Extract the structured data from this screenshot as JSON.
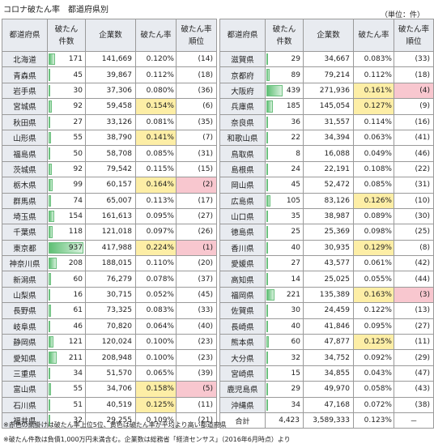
{
  "title": "コロナ破たん率　都道府県別",
  "unit": "（単位：件）",
  "headers": {
    "pref": "都道府県",
    "count_l1": "破たん",
    "count_l2": "件数",
    "companies": "企業数",
    "rate": "破たん率",
    "rank_l1": "破たん率",
    "rank_l2": "順位"
  },
  "max_count": 937,
  "left_rows": [
    {
      "pref": "北海道",
      "count": 171,
      "companies": "141,669",
      "rate": "0.120%",
      "rank": "(14)",
      "hl": ""
    },
    {
      "pref": "青森県",
      "count": 45,
      "companies": "39,867",
      "rate": "0.112%",
      "rank": "(18)",
      "hl": ""
    },
    {
      "pref": "岩手県",
      "count": 30,
      "companies": "37,306",
      "rate": "0.080%",
      "rank": "(36)",
      "hl": ""
    },
    {
      "pref": "宮城県",
      "count": 92,
      "companies": "59,458",
      "rate": "0.154%",
      "rank": "(6)",
      "hl": "y"
    },
    {
      "pref": "秋田県",
      "count": 27,
      "companies": "33,126",
      "rate": "0.081%",
      "rank": "(35)",
      "hl": ""
    },
    {
      "pref": "山形県",
      "count": 55,
      "companies": "38,790",
      "rate": "0.141%",
      "rank": "(7)",
      "hl": "y"
    },
    {
      "pref": "福島県",
      "count": 50,
      "companies": "58,708",
      "rate": "0.085%",
      "rank": "(31)",
      "hl": ""
    },
    {
      "pref": "茨城県",
      "count": 92,
      "companies": "79,542",
      "rate": "0.115%",
      "rank": "(15)",
      "hl": ""
    },
    {
      "pref": "栃木県",
      "count": 99,
      "companies": "60,157",
      "rate": "0.164%",
      "rank": "(2)",
      "hl": "p"
    },
    {
      "pref": "群馬県",
      "count": 74,
      "companies": "65,007",
      "rate": "0.113%",
      "rank": "(17)",
      "hl": ""
    },
    {
      "pref": "埼玉県",
      "count": 154,
      "companies": "161,613",
      "rate": "0.095%",
      "rank": "(27)",
      "hl": ""
    },
    {
      "pref": "千葉県",
      "count": 118,
      "companies": "121,018",
      "rate": "0.097%",
      "rank": "(26)",
      "hl": ""
    },
    {
      "pref": "東京都",
      "count": 937,
      "companies": "417,988",
      "rate": "0.224%",
      "rank": "(1)",
      "hl": "p"
    },
    {
      "pref": "神奈川県",
      "count": 208,
      "companies": "188,015",
      "rate": "0.110%",
      "rank": "(20)",
      "hl": ""
    },
    {
      "pref": "新潟県",
      "count": 60,
      "companies": "76,279",
      "rate": "0.078%",
      "rank": "(37)",
      "hl": ""
    },
    {
      "pref": "山梨県",
      "count": 16,
      "companies": "30,715",
      "rate": "0.052%",
      "rank": "(45)",
      "hl": ""
    },
    {
      "pref": "長野県",
      "count": 61,
      "companies": "73,325",
      "rate": "0.083%",
      "rank": "(33)",
      "hl": ""
    },
    {
      "pref": "岐阜県",
      "count": 46,
      "companies": "70,820",
      "rate": "0.064%",
      "rank": "(40)",
      "hl": ""
    },
    {
      "pref": "静岡県",
      "count": 121,
      "companies": "120,024",
      "rate": "0.100%",
      "rank": "(23)",
      "hl": ""
    },
    {
      "pref": "愛知県",
      "count": 211,
      "companies": "208,948",
      "rate": "0.100%",
      "rank": "(23)",
      "hl": ""
    },
    {
      "pref": "三重県",
      "count": 34,
      "companies": "51,570",
      "rate": "0.065%",
      "rank": "(39)",
      "hl": ""
    },
    {
      "pref": "富山県",
      "count": 55,
      "companies": "34,706",
      "rate": "0.158%",
      "rank": "(5)",
      "hl": "p"
    },
    {
      "pref": "石川県",
      "count": 51,
      "companies": "40,519",
      "rate": "0.125%",
      "rank": "(11)",
      "hl": "y"
    },
    {
      "pref": "福井県",
      "count": 32,
      "companies": "29,255",
      "rate": "0.109%",
      "rank": "(21)",
      "hl": ""
    }
  ],
  "right_rows": [
    {
      "pref": "滋賀県",
      "count": 29,
      "companies": "34,667",
      "rate": "0.083%",
      "rank": "(33)",
      "hl": ""
    },
    {
      "pref": "京都府",
      "count": 89,
      "companies": "79,214",
      "rank": "(18)",
      "rate": "0.112%",
      "hl": ""
    },
    {
      "pref": "大阪府",
      "count": 439,
      "companies": "271,936",
      "rate": "0.161%",
      "rank": "(4)",
      "hl": "p"
    },
    {
      "pref": "兵庫県",
      "count": 185,
      "companies": "145,054",
      "rate": "0.127%",
      "rank": "(9)",
      "hl": "y"
    },
    {
      "pref": "奈良県",
      "count": 36,
      "companies": "31,557",
      "rate": "0.114%",
      "rank": "(16)",
      "hl": ""
    },
    {
      "pref": "和歌山県",
      "count": 22,
      "companies": "34,394",
      "rate": "0.063%",
      "rank": "(41)",
      "hl": ""
    },
    {
      "pref": "鳥取県",
      "count": 8,
      "companies": "16,088",
      "rate": "0.049%",
      "rank": "(46)",
      "hl": ""
    },
    {
      "pref": "島根県",
      "count": 24,
      "companies": "22,191",
      "rate": "0.108%",
      "rank": "(22)",
      "hl": ""
    },
    {
      "pref": "岡山県",
      "count": 45,
      "companies": "52,472",
      "rate": "0.085%",
      "rank": "(31)",
      "hl": ""
    },
    {
      "pref": "広島県",
      "count": 105,
      "companies": "83,126",
      "rate": "0.126%",
      "rank": "(10)",
      "hl": "y"
    },
    {
      "pref": "山口県",
      "count": 35,
      "companies": "38,987",
      "rate": "0.089%",
      "rank": "(30)",
      "hl": ""
    },
    {
      "pref": "徳島県",
      "count": 25,
      "companies": "25,369",
      "rate": "0.098%",
      "rank": "(25)",
      "hl": ""
    },
    {
      "pref": "香川県",
      "count": 40,
      "companies": "30,935",
      "rate": "0.129%",
      "rank": "(8)",
      "hl": "y"
    },
    {
      "pref": "愛媛県",
      "count": 27,
      "companies": "43,577",
      "rate": "0.061%",
      "rank": "(42)",
      "hl": ""
    },
    {
      "pref": "高知県",
      "count": 14,
      "companies": "25,025",
      "rate": "0.055%",
      "rank": "(44)",
      "hl": ""
    },
    {
      "pref": "福岡県",
      "count": 221,
      "companies": "135,389",
      "rate": "0.163%",
      "rank": "(3)",
      "hl": "p"
    },
    {
      "pref": "佐賀県",
      "count": 30,
      "companies": "24,459",
      "rate": "0.122%",
      "rank": "(13)",
      "hl": ""
    },
    {
      "pref": "長崎県",
      "count": 40,
      "companies": "41,846",
      "rate": "0.095%",
      "rank": "(27)",
      "hl": ""
    },
    {
      "pref": "熊本県",
      "count": 60,
      "companies": "47,877",
      "rate": "0.125%",
      "rank": "(11)",
      "hl": "y"
    },
    {
      "pref": "大分県",
      "count": 32,
      "companies": "34,752",
      "rate": "0.092%",
      "rank": "(29)",
      "hl": ""
    },
    {
      "pref": "宮崎県",
      "count": 15,
      "companies": "34,855",
      "rate": "0.043%",
      "rank": "(47)",
      "hl": ""
    },
    {
      "pref": "鹿児島県",
      "count": 29,
      "companies": "49,970",
      "rate": "0.058%",
      "rank": "(43)",
      "hl": ""
    },
    {
      "pref": "沖縄県",
      "count": 34,
      "companies": "47,168",
      "rate": "0.072%",
      "rank": "(38)",
      "hl": ""
    }
  ],
  "total": {
    "label": "合計",
    "count": "4,423",
    "companies": "3,589,333",
    "rate": "0.123%",
    "rank": "－"
  },
  "notes": [
    "※赤色の網掛けは破たん率上位5位、黄色は破たん率が平均より高い都道府県",
    "※破たん件数は負債1,000万円未満含む。企業数は総務省「経済センサス」（2016年6月時点）より"
  ],
  "colors": {
    "header_bg": "#e8ebf0",
    "bar": "#5fbf75",
    "highlight_yellow": "#fdeea6",
    "highlight_pink": "#f8c7cf"
  }
}
